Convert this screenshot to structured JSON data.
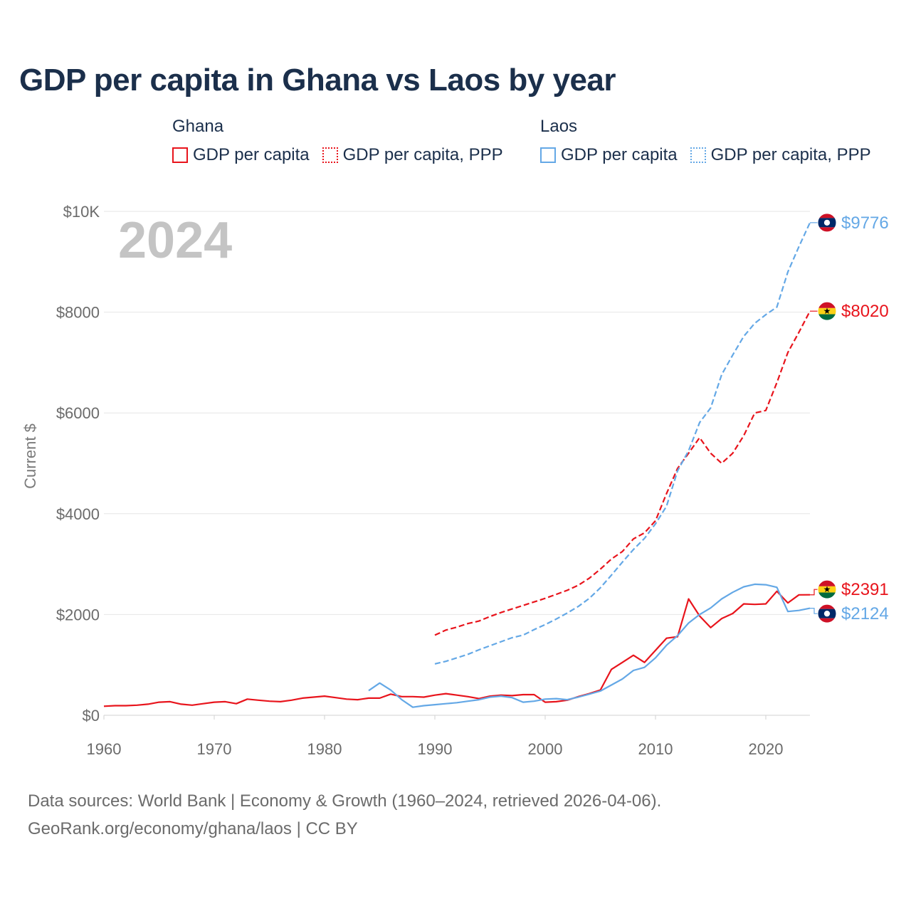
{
  "title": "GDP per capita in Ghana vs Laos by year",
  "legend": {
    "groups": [
      {
        "title": "Ghana",
        "items": [
          {
            "label": "GDP per capita",
            "color": "#e8141c",
            "style": "solid"
          },
          {
            "label": "GDP per capita, PPP",
            "color": "#e8141c",
            "style": "dotted"
          }
        ]
      },
      {
        "title": "Laos",
        "items": [
          {
            "label": "GDP per capita",
            "color": "#64a8e6",
            "style": "solid"
          },
          {
            "label": "GDP per capita, PPP",
            "color": "#64a8e6",
            "style": "dotted"
          }
        ]
      }
    ]
  },
  "chart_data": {
    "type": "line",
    "ylabel": "Current $",
    "xlim": [
      1960,
      2024
    ],
    "ylim": [
      0,
      10000
    ],
    "x_ticks": [
      1960,
      1970,
      1980,
      1990,
      2000,
      2010,
      2020
    ],
    "x_tick_labels": [
      "1960",
      "1970",
      "1980",
      "1990",
      "2000",
      "2010",
      "2020"
    ],
    "y_ticks": [
      0,
      2000,
      4000,
      6000,
      8000,
      10000
    ],
    "y_tick_labels": [
      "$0",
      "$2000",
      "$4000",
      "$6000",
      "$8000",
      "$10K"
    ],
    "year_watermark": "2024",
    "series": [
      {
        "name": "Ghana GDP per capita",
        "country": "Ghana",
        "color": "#e8141c",
        "dash": "solid",
        "x": [
          1960,
          1961,
          1962,
          1963,
          1964,
          1965,
          1966,
          1967,
          1968,
          1969,
          1970,
          1971,
          1972,
          1973,
          1974,
          1975,
          1976,
          1977,
          1978,
          1979,
          1980,
          1981,
          1982,
          1983,
          1984,
          1985,
          1986,
          1987,
          1988,
          1989,
          1990,
          1991,
          1992,
          1993,
          1994,
          1995,
          1996,
          1997,
          1998,
          1999,
          2000,
          2001,
          2002,
          2003,
          2004,
          2005,
          2006,
          2007,
          2008,
          2009,
          2010,
          2011,
          2012,
          2013,
          2014,
          2015,
          2016,
          2017,
          2018,
          2019,
          2020,
          2021,
          2022,
          2023,
          2024
        ],
        "values": [
          180,
          190,
          190,
          200,
          220,
          260,
          270,
          220,
          200,
          230,
          260,
          270,
          230,
          320,
          300,
          280,
          270,
          300,
          340,
          360,
          380,
          350,
          320,
          310,
          340,
          340,
          420,
          370,
          370,
          360,
          400,
          430,
          400,
          370,
          330,
          380,
          400,
          390,
          410,
          410,
          260,
          270,
          300,
          370,
          430,
          500,
          910,
          1050,
          1190,
          1050,
          1290,
          1530,
          1560,
          2310,
          1970,
          1740,
          1920,
          2020,
          2210,
          2200,
          2210,
          2460,
          2230,
          2390,
          2391
        ],
        "end_label": "$2391",
        "flag": "ghana"
      },
      {
        "name": "Ghana GDP per capita, PPP",
        "country": "Ghana",
        "color": "#e8141c",
        "dash": "dashed",
        "x": [
          1990,
          1991,
          1992,
          1993,
          1994,
          1995,
          1996,
          1997,
          1998,
          1999,
          2000,
          2001,
          2002,
          2003,
          2004,
          2005,
          2006,
          2007,
          2008,
          2009,
          2010,
          2011,
          2012,
          2013,
          2014,
          2015,
          2016,
          2017,
          2018,
          2019,
          2020,
          2021,
          2022,
          2023,
          2024
        ],
        "values": [
          1590,
          1690,
          1750,
          1820,
          1870,
          1960,
          2040,
          2110,
          2180,
          2250,
          2320,
          2400,
          2480,
          2580,
          2720,
          2900,
          3100,
          3250,
          3500,
          3620,
          3860,
          4400,
          4900,
          5200,
          5510,
          5200,
          5000,
          5200,
          5550,
          6000,
          6050,
          6600,
          7200,
          7600,
          8020
        ],
        "end_label": "$8020",
        "flag": "ghana"
      },
      {
        "name": "Laos GDP per capita",
        "country": "Laos",
        "color": "#64a8e6",
        "dash": "solid",
        "x": [
          1984,
          1985,
          1986,
          1987,
          1988,
          1989,
          1990,
          1991,
          1992,
          1993,
          1994,
          1995,
          1996,
          1997,
          1998,
          1999,
          2000,
          2001,
          2002,
          2003,
          2004,
          2005,
          2006,
          2007,
          2008,
          2009,
          2010,
          2011,
          2012,
          2013,
          2014,
          2015,
          2016,
          2017,
          2018,
          2019,
          2020,
          2021,
          2022,
          2023,
          2024
        ],
        "values": [
          490,
          640,
          500,
          310,
          160,
          190,
          210,
          230,
          250,
          280,
          310,
          360,
          380,
          350,
          260,
          280,
          320,
          330,
          310,
          360,
          420,
          480,
          600,
          720,
          890,
          950,
          1140,
          1390,
          1580,
          1830,
          2000,
          2130,
          2310,
          2440,
          2550,
          2600,
          2590,
          2540,
          2060,
          2080,
          2124
        ],
        "end_label": "$2124",
        "flag": "laos"
      },
      {
        "name": "Laos GDP per capita, PPP",
        "country": "Laos",
        "color": "#64a8e6",
        "dash": "dashed",
        "x": [
          1990,
          1991,
          1992,
          1993,
          1994,
          1995,
          1996,
          1997,
          1998,
          1999,
          2000,
          2001,
          2002,
          2003,
          2004,
          2005,
          2006,
          2007,
          2008,
          2009,
          2010,
          2011,
          2012,
          2013,
          2014,
          2015,
          2016,
          2017,
          2018,
          2019,
          2020,
          2021,
          2022,
          2023,
          2024
        ],
        "values": [
          1020,
          1070,
          1140,
          1210,
          1300,
          1380,
          1460,
          1540,
          1590,
          1700,
          1800,
          1910,
          2030,
          2160,
          2320,
          2530,
          2780,
          3040,
          3290,
          3510,
          3800,
          4150,
          4850,
          5250,
          5810,
          6100,
          6760,
          7150,
          7520,
          7780,
          7950,
          8100,
          8800,
          9300,
          9776
        ],
        "end_label": "$9776",
        "flag": "laos"
      }
    ]
  },
  "footer": {
    "line1": "Data sources: World Bank | Economy & Growth (1960–2024, retrieved 2026-04-06).",
    "line2": "GeoRank.org/economy/ghana/laos | CC BY"
  }
}
